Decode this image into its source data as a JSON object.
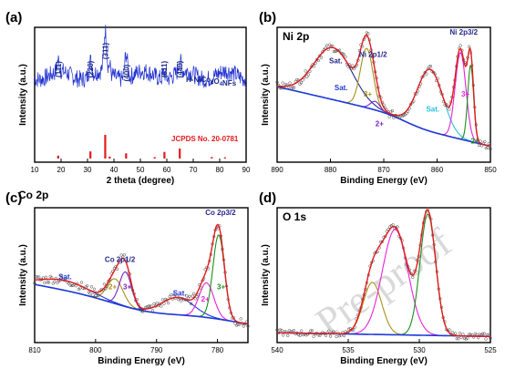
{
  "colors": {
    "frame": "#000000",
    "blue_data": "#1f2fd0",
    "red": "#e31a1c",
    "dark_red": "#b00000",
    "blue_bg": "#1f3ad8",
    "cyan": "#27c3d8",
    "magenta": "#e524d6",
    "green": "#1a8f1a",
    "olive": "#a6911a",
    "purple": "#7b22c7",
    "navy": "#26288c",
    "gray_points": "#444444",
    "watermark": "#d9d9d9"
  },
  "watermark": "Pre-proof",
  "chart_data": [
    {
      "type": "line",
      "panel_label": "(a)",
      "xlabel": "2 theta (degree)",
      "ylabel": "Intensity (a.u.)",
      "xlim": [
        10,
        90
      ],
      "xticks": [
        10,
        20,
        30,
        40,
        50,
        60,
        70,
        80,
        90
      ],
      "series": [
        {
          "name": "H-NiCo2O4NFs",
          "x": [
            10,
            14,
            17,
            18.9,
            21,
            25,
            28,
            31.1,
            33,
            35,
            36.7,
            37.6,
            38.2,
            39,
            41,
            42.5,
            44.6,
            46.5,
            49,
            53,
            56,
            59,
            60.7,
            62,
            63.5,
            64.9,
            66.5,
            70,
            75,
            80,
            85,
            90
          ],
          "y": [
            0.52,
            0.5,
            0.52,
            0.68,
            0.52,
            0.5,
            0.54,
            0.68,
            0.6,
            0.7,
            0.85,
            1.0,
            0.86,
            0.66,
            0.6,
            0.66,
            0.84,
            0.62,
            0.52,
            0.5,
            0.5,
            0.53,
            0.62,
            0.54,
            0.5,
            0.6,
            0.52,
            0.5,
            0.5,
            0.49,
            0.5,
            0.5
          ]
        }
      ],
      "peak_labels": [
        {
          "text": "(111)",
          "x": 18.9
        },
        {
          "text": "(220)",
          "x": 31.1
        },
        {
          "text": "(311)",
          "x": 36.7
        },
        {
          "text": "(400)",
          "x": 44.6
        },
        {
          "text": "(511)",
          "x": 59.0
        },
        {
          "text": "(440)",
          "x": 64.9
        }
      ],
      "sample_label": "H-NiCo",
      "sample_sub1": "2",
      "sample_mid": "O",
      "sample_sub2": "4",
      "sample_end": "NFs",
      "reference_label": "JCPDS No. 20-0781",
      "reference_bars": {
        "x": [
          18.9,
          31.1,
          36.7,
          38.4,
          44.6,
          55.4,
          59.1,
          64.9,
          77.0,
          82.0
        ],
        "height": [
          0.12,
          0.3,
          1.0,
          0.08,
          0.22,
          0.06,
          0.28,
          0.42,
          0.06,
          0.05
        ]
      }
    },
    {
      "type": "line",
      "panel_label": "(b)",
      "panel_title": "Ni 2p",
      "xlabel": "Binding Energy (eV)",
      "ylabel": "Intensity (a.u.)",
      "xlim": [
        890,
        850
      ],
      "xticks": [
        890,
        880,
        870,
        860,
        850
      ],
      "annotations": [
        {
          "text": "Sat.",
          "x": 879,
          "y": 0.77,
          "color": "navy"
        },
        {
          "text": "Ni 2p1/2",
          "x": 872,
          "y": 0.82,
          "color": "navy"
        },
        {
          "text": "Ni 2p3/2",
          "x": 855,
          "y": 1.0,
          "color": "navy"
        },
        {
          "text": "Sat.",
          "x": 878,
          "y": 0.55,
          "color": "blue_bg"
        },
        {
          "text": "3+",
          "x": 873,
          "y": 0.5,
          "color": "olive"
        },
        {
          "text": "2+",
          "x": 870.8,
          "y": 0.26,
          "color": "purple"
        },
        {
          "text": "Sat.",
          "x": 860.8,
          "y": 0.38,
          "color": "cyan"
        },
        {
          "text": "3+",
          "x": 854.7,
          "y": 0.5,
          "color": "magenta"
        },
        {
          "text": "2+",
          "x": 852.9,
          "y": 0.12,
          "color": "green"
        }
      ]
    },
    {
      "type": "line",
      "panel_label": "(c)",
      "panel_title": "Co 2p",
      "xlabel": "Binding Energy (eV)",
      "ylabel": "Intensity (a.u.)",
      "xlim": [
        810,
        775
      ],
      "xticks": [
        810,
        800,
        790,
        780
      ],
      "annotations": [
        {
          "text": "Co 2p1/2",
          "x": 796,
          "y": 0.62,
          "color": "navy"
        },
        {
          "text": "Co 2p3/2",
          "x": 779.5,
          "y": 1.0,
          "color": "navy"
        },
        {
          "text": "Sat.",
          "x": 805,
          "y": 0.48,
          "color": "blue_bg"
        },
        {
          "text": "2+",
          "x": 797.2,
          "y": 0.4,
          "color": "olive"
        },
        {
          "text": "3+",
          "x": 794.8,
          "y": 0.4,
          "color": "purple"
        },
        {
          "text": "Sat.",
          "x": 786.2,
          "y": 0.35,
          "color": "blue_bg"
        },
        {
          "text": "2+",
          "x": 782.0,
          "y": 0.3,
          "color": "magenta"
        },
        {
          "text": "3+",
          "x": 779.4,
          "y": 0.4,
          "color": "green"
        }
      ]
    },
    {
      "type": "line",
      "panel_label": "(d)",
      "panel_title": "O 1s",
      "xlabel": "Binding Energy (eV)",
      "ylabel": "Intensity (a.u.)",
      "xlim": [
        540,
        525
      ],
      "xticks": [
        540,
        535,
        530,
        525
      ]
    }
  ]
}
